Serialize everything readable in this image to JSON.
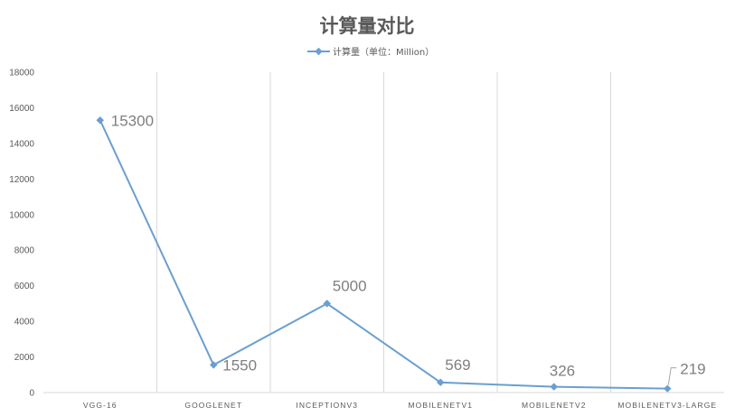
{
  "chart_data": {
    "type": "line",
    "title": "计算量对比",
    "categories": [
      "VGG-16",
      "GOOGLENET",
      "INCEPTIONV3",
      "MOBILENETV1",
      "MOBILENETV2",
      "MOBILENETV3-LARGE"
    ],
    "series": [
      {
        "name": "计算量（单位：Million）",
        "values": [
          15300,
          1550,
          5000,
          569,
          326,
          219
        ]
      }
    ],
    "data_labels": [
      "15300",
      "1550",
      "5000",
      "569",
      "326",
      "219"
    ],
    "ylim": [
      0,
      18000
    ],
    "yticks": [
      0,
      2000,
      4000,
      6000,
      8000,
      10000,
      12000,
      14000,
      16000,
      18000
    ],
    "xlabel": "",
    "ylabel": "",
    "legend_position": "top",
    "grid": "vertical",
    "colors": {
      "line": "#6a9fd0",
      "grid": "#d9d9d9",
      "text": "#595959",
      "label": "#7f7f7f"
    }
  }
}
